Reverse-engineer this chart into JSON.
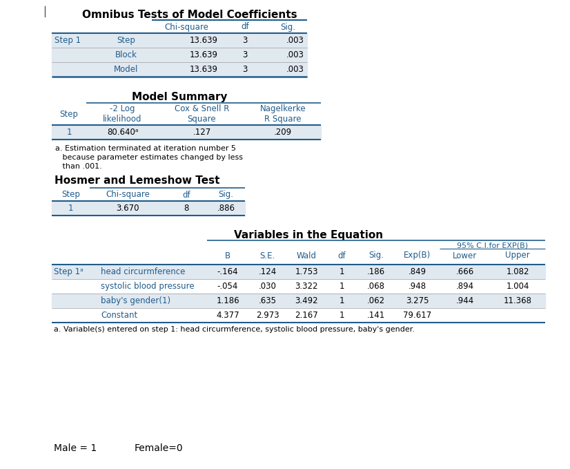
{
  "bg_color": "#ffffff",
  "text_color": "#000000",
  "header_color": "#1F5C8B",
  "row_bg_shaded": "#E0E8F0",
  "title1": "Omnibus Tests of Model Coefficients",
  "title2": "Model Summary",
  "title3": "Hosmer and Lemeshow Test",
  "title4": "Variables in the Equation",
  "table2_footnote": "a. Estimation terminated at iteration number 5\n   because parameter estimates changed by less\n   than .001.",
  "table4_footnote": "a. Variable(s) entered on step 1: head circurmference, systolic blood pressure, baby's gender.",
  "footer_text1": "Male = 1",
  "footer_text2": "Female=0"
}
